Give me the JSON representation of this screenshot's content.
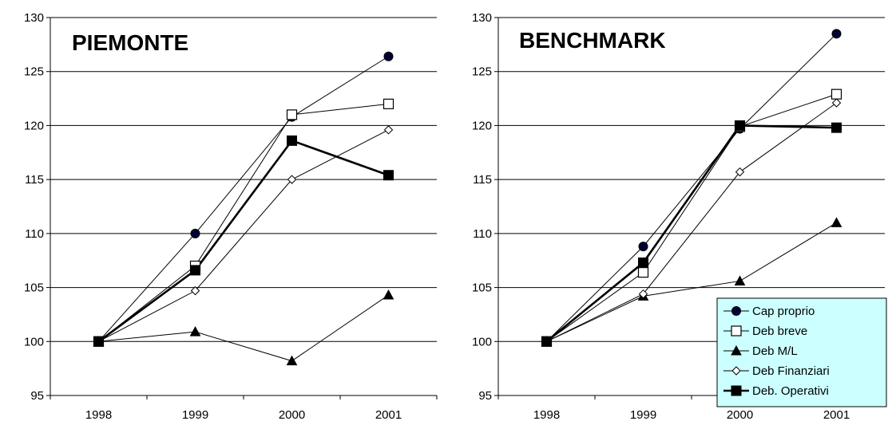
{
  "chart_data": [
    {
      "type": "line",
      "title": "PIEMONTE",
      "categories": [
        "1998",
        "1999",
        "2000",
        "2001"
      ],
      "ylim": [
        95,
        130
      ],
      "yticks": [
        95,
        100,
        105,
        110,
        115,
        120,
        125,
        130
      ],
      "grid": true,
      "legend": "none",
      "series": [
        {
          "name": "Cap proprio",
          "marker": "circle",
          "values": [
            100,
            110.0,
            120.8,
            126.4
          ]
        },
        {
          "name": "Deb breve",
          "marker": "square-open",
          "values": [
            100,
            107.0,
            121.0,
            122.0
          ]
        },
        {
          "name": "Deb M/L",
          "marker": "triangle",
          "values": [
            100,
            100.9,
            98.2,
            104.3
          ]
        },
        {
          "name": "Deb Finanziari",
          "marker": "diamond-open",
          "values": [
            100,
            104.7,
            115.0,
            119.6
          ]
        },
        {
          "name": "Deb. Operativi",
          "marker": "square-filled",
          "values": [
            100,
            106.6,
            118.6,
            115.4
          ]
        }
      ]
    },
    {
      "type": "line",
      "title": "BENCHMARK",
      "categories": [
        "1998",
        "1999",
        "2000",
        "2001"
      ],
      "ylim": [
        95,
        130
      ],
      "yticks": [
        95,
        100,
        105,
        110,
        115,
        120,
        125,
        130
      ],
      "grid": true,
      "legend": "bottom-right",
      "series": [
        {
          "name": "Cap proprio",
          "marker": "circle",
          "values": [
            100,
            108.8,
            119.7,
            128.5
          ]
        },
        {
          "name": "Deb breve",
          "marker": "square-open",
          "values": [
            100,
            106.4,
            119.9,
            122.9
          ]
        },
        {
          "name": "Deb M/L",
          "marker": "triangle",
          "values": [
            100,
            104.2,
            105.6,
            111.0
          ]
        },
        {
          "name": "Deb Finanziari",
          "marker": "diamond-open",
          "values": [
            100,
            104.4,
            115.7,
            122.1
          ]
        },
        {
          "name": "Deb. Operativi",
          "marker": "square-filled",
          "values": [
            100,
            107.3,
            120.0,
            119.8
          ]
        }
      ]
    }
  ],
  "colors": {
    "line": "#000000",
    "circle_fill": "#000033",
    "legend_bg": "#ccffff",
    "grid": "#000000"
  }
}
